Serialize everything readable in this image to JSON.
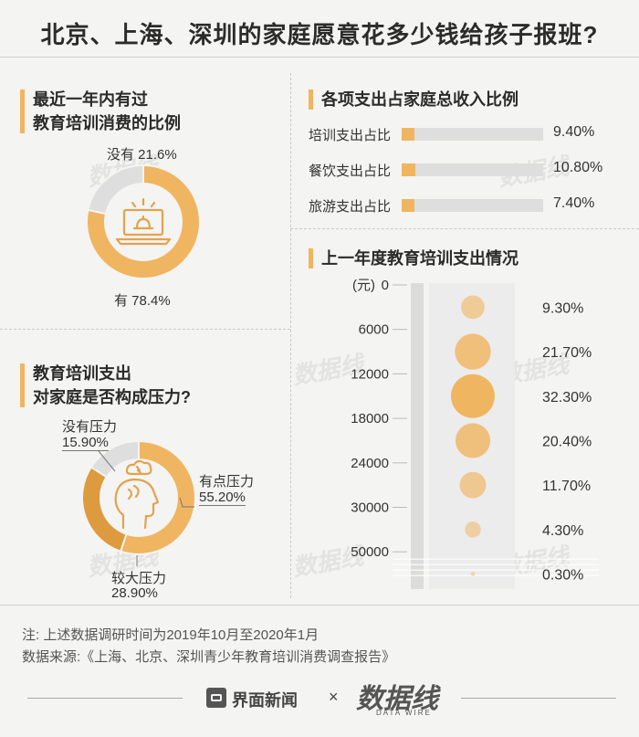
{
  "title": "北京、上海、深圳的家庭愿意花多少钱给孩子报班?",
  "section1": {
    "title_line1": "最近一年内有过",
    "title_line2": "教育培训消费的比例",
    "chart_data": {
      "type": "pie",
      "categories": [
        "有",
        "没有"
      ],
      "values": [
        78.4,
        21.6
      ],
      "colors": [
        "#f0b560",
        "#dedede"
      ]
    },
    "labels": {
      "yes": "有 78.4%",
      "no": "没有  21.6%"
    }
  },
  "section2": {
    "title": "各项支出占家庭总收入比例",
    "chart_data": {
      "type": "bar",
      "categories": [
        "培训支出占比",
        "餐饮支出占比",
        "旅游支出占比"
      ],
      "values": [
        9.4,
        10.8,
        7.4
      ],
      "value_labels": [
        "9.40%",
        "10.80%",
        "7.40%"
      ]
    }
  },
  "section3": {
    "title_line1": "教育培训支出",
    "title_line2": "对家庭是否构成压力?",
    "chart_data": {
      "type": "pie",
      "categories": [
        "有点压力",
        "较大压力",
        "没有压力"
      ],
      "values": [
        55.2,
        28.9,
        15.9
      ],
      "colors": [
        "#f0b560",
        "#de9a3e",
        "#dedede"
      ]
    },
    "labels": {
      "some_name": "有点压力",
      "some_val": "55.20%",
      "big_name": "较大压力",
      "big_val": "28.90%",
      "none_name": "没有压力",
      "none_val": "15.90%"
    }
  },
  "section4": {
    "title": "上一年度教育培训支出情况",
    "chart_data": {
      "type": "scatter",
      "unit": "(元)",
      "y_ticks": [
        "0",
        "6000",
        "12000",
        "18000",
        "24000",
        "30000",
        "50000"
      ],
      "values": [
        9.3,
        21.7,
        32.3,
        20.4,
        11.7,
        4.3,
        0.3
      ],
      "value_labels": [
        "9.30%",
        "21.70%",
        "32.30%",
        "20.40%",
        "11.70%",
        "4.30%",
        "0.30%"
      ]
    }
  },
  "footer": {
    "note": "注:  上述数据调研时间为2019年10月至2020年1月",
    "source": "数据来源:《上海、北京、深圳青少年教育培训消费调查报告》",
    "brand1": "界面新闻",
    "cross": "×",
    "brand2": "数据线",
    "brand2_sub": "DATA WIRE"
  },
  "watermark": "数据线"
}
